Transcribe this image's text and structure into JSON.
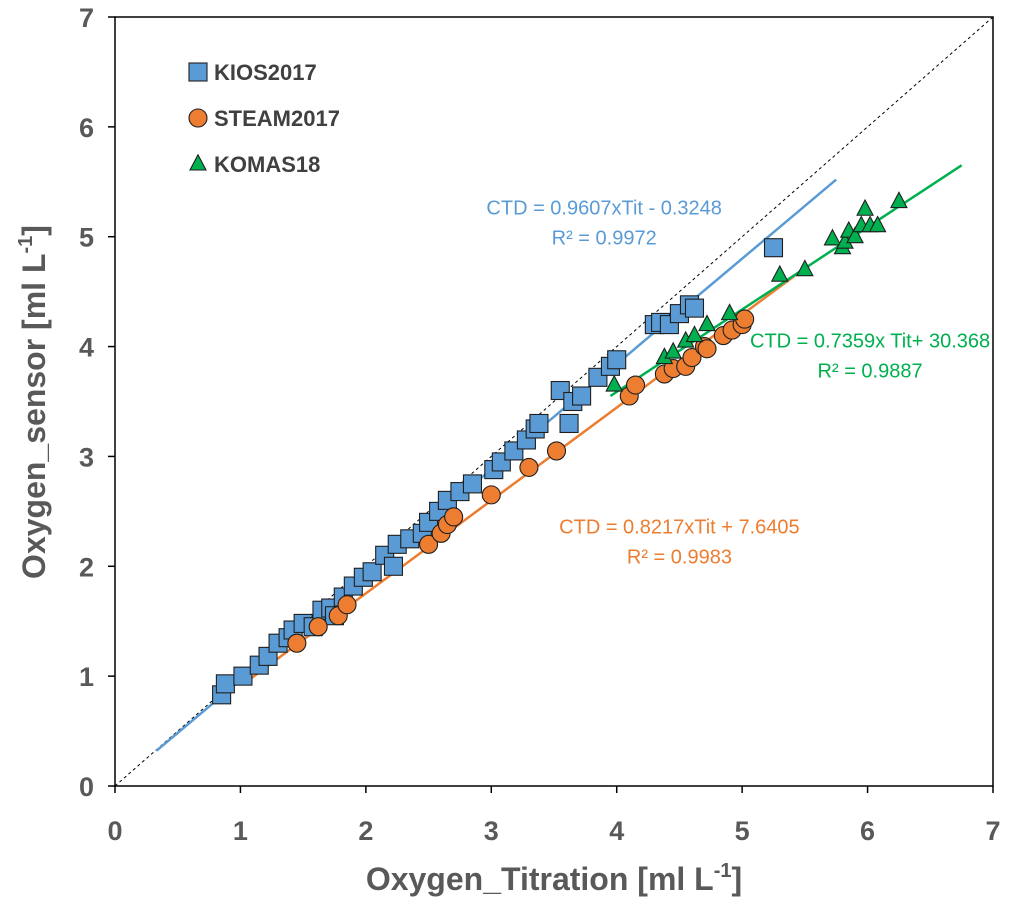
{
  "chart_data": {
    "type": "scatter",
    "xlabel": "Oxygen_Titration [ml L-1]",
    "xlabel_main": "Oxygen_Titration [ml L",
    "xlabel_sup": "-1",
    "xlabel_end": "]",
    "ylabel": "Oxygen_sensor [ml L-1]",
    "ylabel_main": "Oxygen_sensor [ml L",
    "ylabel_sup": "-1",
    "ylabel_end": "]",
    "xlim": [
      0,
      7
    ],
    "ylim": [
      0,
      7
    ],
    "xticks": [
      "0",
      "1",
      "2",
      "3",
      "4",
      "5",
      "6",
      "7"
    ],
    "yticks": [
      "0",
      "1",
      "2",
      "3",
      "4",
      "5",
      "6",
      "7"
    ],
    "grid": false,
    "legend_position": "top-left",
    "identity_line": true,
    "series": [
      {
        "name": "KIOS2017",
        "marker": "square",
        "color": "#5b9bd5",
        "points": [
          [
            0.85,
            0.83
          ],
          [
            0.88,
            0.93
          ],
          [
            1.02,
            1.0
          ],
          [
            1.15,
            1.1
          ],
          [
            1.22,
            1.18
          ],
          [
            1.3,
            1.3
          ],
          [
            1.38,
            1.35
          ],
          [
            1.42,
            1.42
          ],
          [
            1.5,
            1.48
          ],
          [
            1.58,
            1.45
          ],
          [
            1.65,
            1.6
          ],
          [
            1.72,
            1.62
          ],
          [
            1.75,
            1.55
          ],
          [
            1.82,
            1.72
          ],
          [
            1.9,
            1.82
          ],
          [
            1.98,
            1.9
          ],
          [
            2.05,
            1.95
          ],
          [
            2.15,
            2.1
          ],
          [
            2.22,
            2.0
          ],
          [
            2.25,
            2.2
          ],
          [
            2.35,
            2.25
          ],
          [
            2.45,
            2.3
          ],
          [
            2.5,
            2.4
          ],
          [
            2.58,
            2.5
          ],
          [
            2.65,
            2.6
          ],
          [
            2.75,
            2.68
          ],
          [
            2.85,
            2.75
          ],
          [
            3.02,
            2.88
          ],
          [
            3.08,
            2.95
          ],
          [
            3.18,
            3.05
          ],
          [
            3.28,
            3.15
          ],
          [
            3.35,
            3.25
          ],
          [
            3.38,
            3.3
          ],
          [
            3.55,
            3.6
          ],
          [
            3.62,
            3.3
          ],
          [
            3.65,
            3.5
          ],
          [
            3.72,
            3.55
          ],
          [
            3.85,
            3.72
          ],
          [
            3.95,
            3.82
          ],
          [
            4.0,
            3.88
          ],
          [
            4.3,
            4.2
          ],
          [
            4.35,
            4.22
          ],
          [
            4.42,
            4.2
          ],
          [
            4.5,
            4.3
          ],
          [
            4.58,
            4.38
          ],
          [
            4.62,
            4.35
          ],
          [
            5.25,
            4.9
          ]
        ]
      },
      {
        "name": "STEAM2017",
        "marker": "circle",
        "color": "#ed7d31",
        "points": [
          [
            1.45,
            1.3
          ],
          [
            1.62,
            1.45
          ],
          [
            1.78,
            1.55
          ],
          [
            1.85,
            1.65
          ],
          [
            2.5,
            2.2
          ],
          [
            2.6,
            2.3
          ],
          [
            2.65,
            2.38
          ],
          [
            2.7,
            2.45
          ],
          [
            3.0,
            2.65
          ],
          [
            3.3,
            2.9
          ],
          [
            3.52,
            3.05
          ],
          [
            4.1,
            3.55
          ],
          [
            4.15,
            3.65
          ],
          [
            4.38,
            3.75
          ],
          [
            4.45,
            3.8
          ],
          [
            4.55,
            3.82
          ],
          [
            4.6,
            3.9
          ],
          [
            4.7,
            4.0
          ],
          [
            4.72,
            3.98
          ],
          [
            4.85,
            4.1
          ],
          [
            4.92,
            4.15
          ],
          [
            5.0,
            4.2
          ],
          [
            5.02,
            4.25
          ]
        ]
      },
      {
        "name": "KOMAS18",
        "marker": "triangle",
        "color": "#00b050",
        "points": [
          [
            3.98,
            3.65
          ],
          [
            4.38,
            3.9
          ],
          [
            4.45,
            3.95
          ],
          [
            4.55,
            4.05
          ],
          [
            4.62,
            4.1
          ],
          [
            4.72,
            4.2
          ],
          [
            4.9,
            4.3
          ],
          [
            5.3,
            4.65
          ],
          [
            5.5,
            4.7
          ],
          [
            5.72,
            4.98
          ],
          [
            5.8,
            4.9
          ],
          [
            5.82,
            4.95
          ],
          [
            5.85,
            5.05
          ],
          [
            5.9,
            5.0
          ],
          [
            5.95,
            5.1
          ],
          [
            5.98,
            5.25
          ],
          [
            6.02,
            5.1
          ],
          [
            6.08,
            5.1
          ],
          [
            6.25,
            5.32
          ]
        ]
      }
    ],
    "fit_lines": [
      {
        "series": "KIOS2017",
        "color": "#5b9bd5",
        "x1": 0.33,
        "y1": 0.32,
        "x2": 5.75,
        "y2": 5.52
      },
      {
        "series": "STEAM2017",
        "color": "#ed7d31",
        "x1": 1.05,
        "y1": 0.95,
        "x2": 5.52,
        "y2": 4.73
      },
      {
        "series": "KOMAS18",
        "color": "#00b050",
        "x1": 3.95,
        "y1": 3.55,
        "x2": 6.75,
        "y2": 5.65
      }
    ],
    "annotations": [
      {
        "series": "KIOS2017",
        "color": "#5b9bd5",
        "at": [
          3.9,
          5.2
        ],
        "equation": "CTD = 0.9607xTit - 0.3248",
        "r2": "R² = 0.9972"
      },
      {
        "series": "KOMAS18",
        "color": "#00b050",
        "at": [
          6.02,
          3.99
        ],
        "equation": "CTD = 0.7359x Tit+ 30.368",
        "r2": "R² = 0.9887"
      },
      {
        "series": "STEAM2017",
        "color": "#ed7d31",
        "at": [
          4.5,
          2.3
        ],
        "equation": "CTD = 0.8217xTit + 7.6405",
        "r2": "R² = 0.9983"
      }
    ]
  }
}
